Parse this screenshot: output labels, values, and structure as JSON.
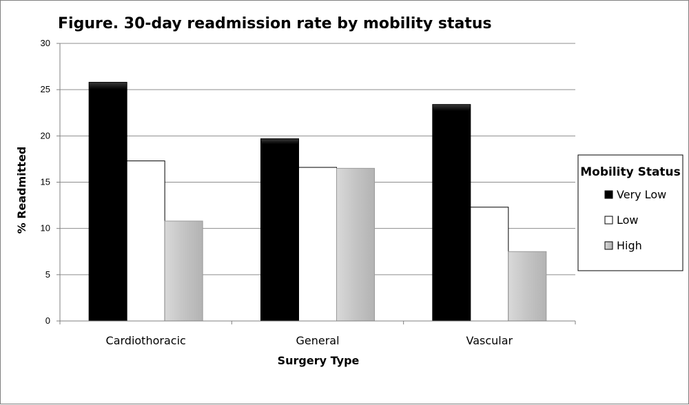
{
  "chart_data": {
    "type": "bar",
    "title": "Figure. 30-day readmission rate by mobility status",
    "xlabel": "Surgery Type",
    "ylabel": "% Readmitted",
    "categories": [
      "Cardiothoracic",
      "General",
      "Vascular"
    ],
    "series": [
      {
        "name": "Very Low",
        "values": [
          25.8,
          19.7,
          23.4
        ],
        "color": "#000000"
      },
      {
        "name": "Low",
        "values": [
          17.3,
          16.6,
          12.3
        ],
        "color": "#ffffff"
      },
      {
        "name": "High",
        "values": [
          10.8,
          16.5,
          7.5
        ],
        "color": "#bfbfbf"
      }
    ],
    "ylim": [
      0,
      30
    ],
    "yticks": [
      0,
      5,
      10,
      15,
      20,
      25,
      30
    ],
    "grid": true,
    "legend": {
      "title": "Mobility Status",
      "position": "right"
    }
  }
}
